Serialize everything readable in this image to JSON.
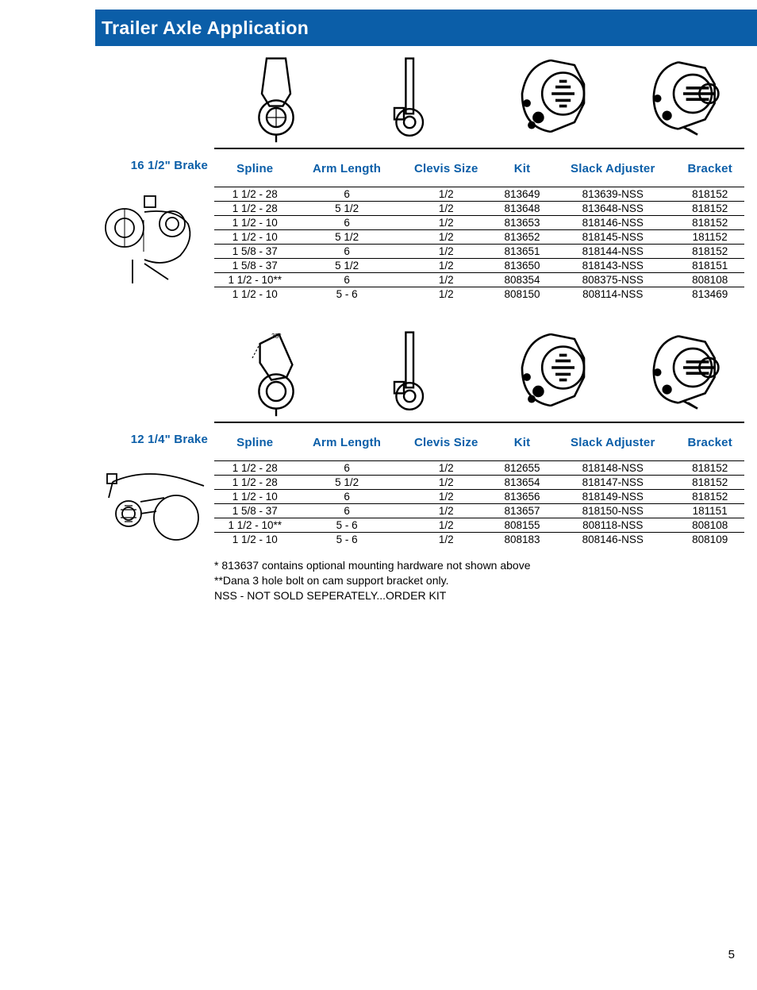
{
  "header": {
    "title": "Trailer Axle Application"
  },
  "table_headers": {
    "spline": "Spline",
    "arm_length": "Arm Length",
    "clevis_size": "Clevis Size",
    "kit": "Kit",
    "slack_adjuster": "Slack Adjuster",
    "bracket": "Bracket"
  },
  "sections": [
    {
      "label": "16 1/2\" Brake",
      "rows": [
        {
          "spline": "1 1/2 - 28",
          "arm": "6",
          "clevis": "1/2",
          "kit": "813649",
          "slack": "813639-NSS",
          "bracket": "818152"
        },
        {
          "spline": "1 1/2 - 28",
          "arm": "5 1/2",
          "clevis": "1/2",
          "kit": "813648",
          "slack": "813648-NSS",
          "bracket": "818152"
        },
        {
          "spline": "1 1/2 - 10",
          "arm": "6",
          "clevis": "1/2",
          "kit": "813653",
          "slack": "818146-NSS",
          "bracket": "818152"
        },
        {
          "spline": "1 1/2 - 10",
          "arm": "5 1/2",
          "clevis": "1/2",
          "kit": "813652",
          "slack": "818145-NSS",
          "bracket": "181152"
        },
        {
          "spline": "1 5/8 - 37",
          "arm": "6",
          "clevis": "1/2",
          "kit": "813651",
          "slack": "818144-NSS",
          "bracket": "818152"
        },
        {
          "spline": "1 5/8 - 37",
          "arm": "5 1/2",
          "clevis": "1/2",
          "kit": "813650",
          "slack": "818143-NSS",
          "bracket": "818151"
        },
        {
          "spline": "1 1/2 - 10**",
          "arm": "6",
          "clevis": "1/2",
          "kit": "808354",
          "slack": "808375-NSS",
          "bracket": "808108"
        },
        {
          "spline": "1 1/2 - 10",
          "arm": "5 - 6",
          "clevis": "1/2",
          "kit": "808150",
          "slack": "808114-NSS",
          "bracket": "813469"
        }
      ]
    },
    {
      "label": "12 1/4\" Brake",
      "rows": [
        {
          "spline": "1 1/2 - 28",
          "arm": "6",
          "clevis": "1/2",
          "kit": "812655",
          "slack": "818148-NSS",
          "bracket": "818152"
        },
        {
          "spline": "1 1/2 - 28",
          "arm": "5 1/2",
          "clevis": "1/2",
          "kit": "813654",
          "slack": "818147-NSS",
          "bracket": "818152"
        },
        {
          "spline": "1 1/2 - 10",
          "arm": "6",
          "clevis": "1/2",
          "kit": "813656",
          "slack": "818149-NSS",
          "bracket": "818152"
        },
        {
          "spline": "1 5/8 - 37",
          "arm": "6",
          "clevis": "1/2",
          "kit": "813657",
          "slack": "818150-NSS",
          "bracket": "181151"
        },
        {
          "spline": "1 1/2 - 10**",
          "arm": "5 - 6",
          "clevis": "1/2",
          "kit": "808155",
          "slack": "808118-NSS",
          "bracket": "808108"
        },
        {
          "spline": "1 1/2 - 10",
          "arm": "5 - 6",
          "clevis": "1/2",
          "kit": "808183",
          "slack": "808146-NSS",
          "bracket": "808109"
        }
      ]
    }
  ],
  "footnotes": {
    "n1": "* 813637 contains optional mounting hardware not shown above",
    "n2": "**Dana 3 hole bolt on cam support bracket only.",
    "n3": "NSS - NOT SOLD SEPERATELY...ORDER KIT"
  },
  "page_number": "5",
  "colors": {
    "brand_blue": "#0b5ea8",
    "text": "#000000",
    "bg": "#ffffff"
  }
}
